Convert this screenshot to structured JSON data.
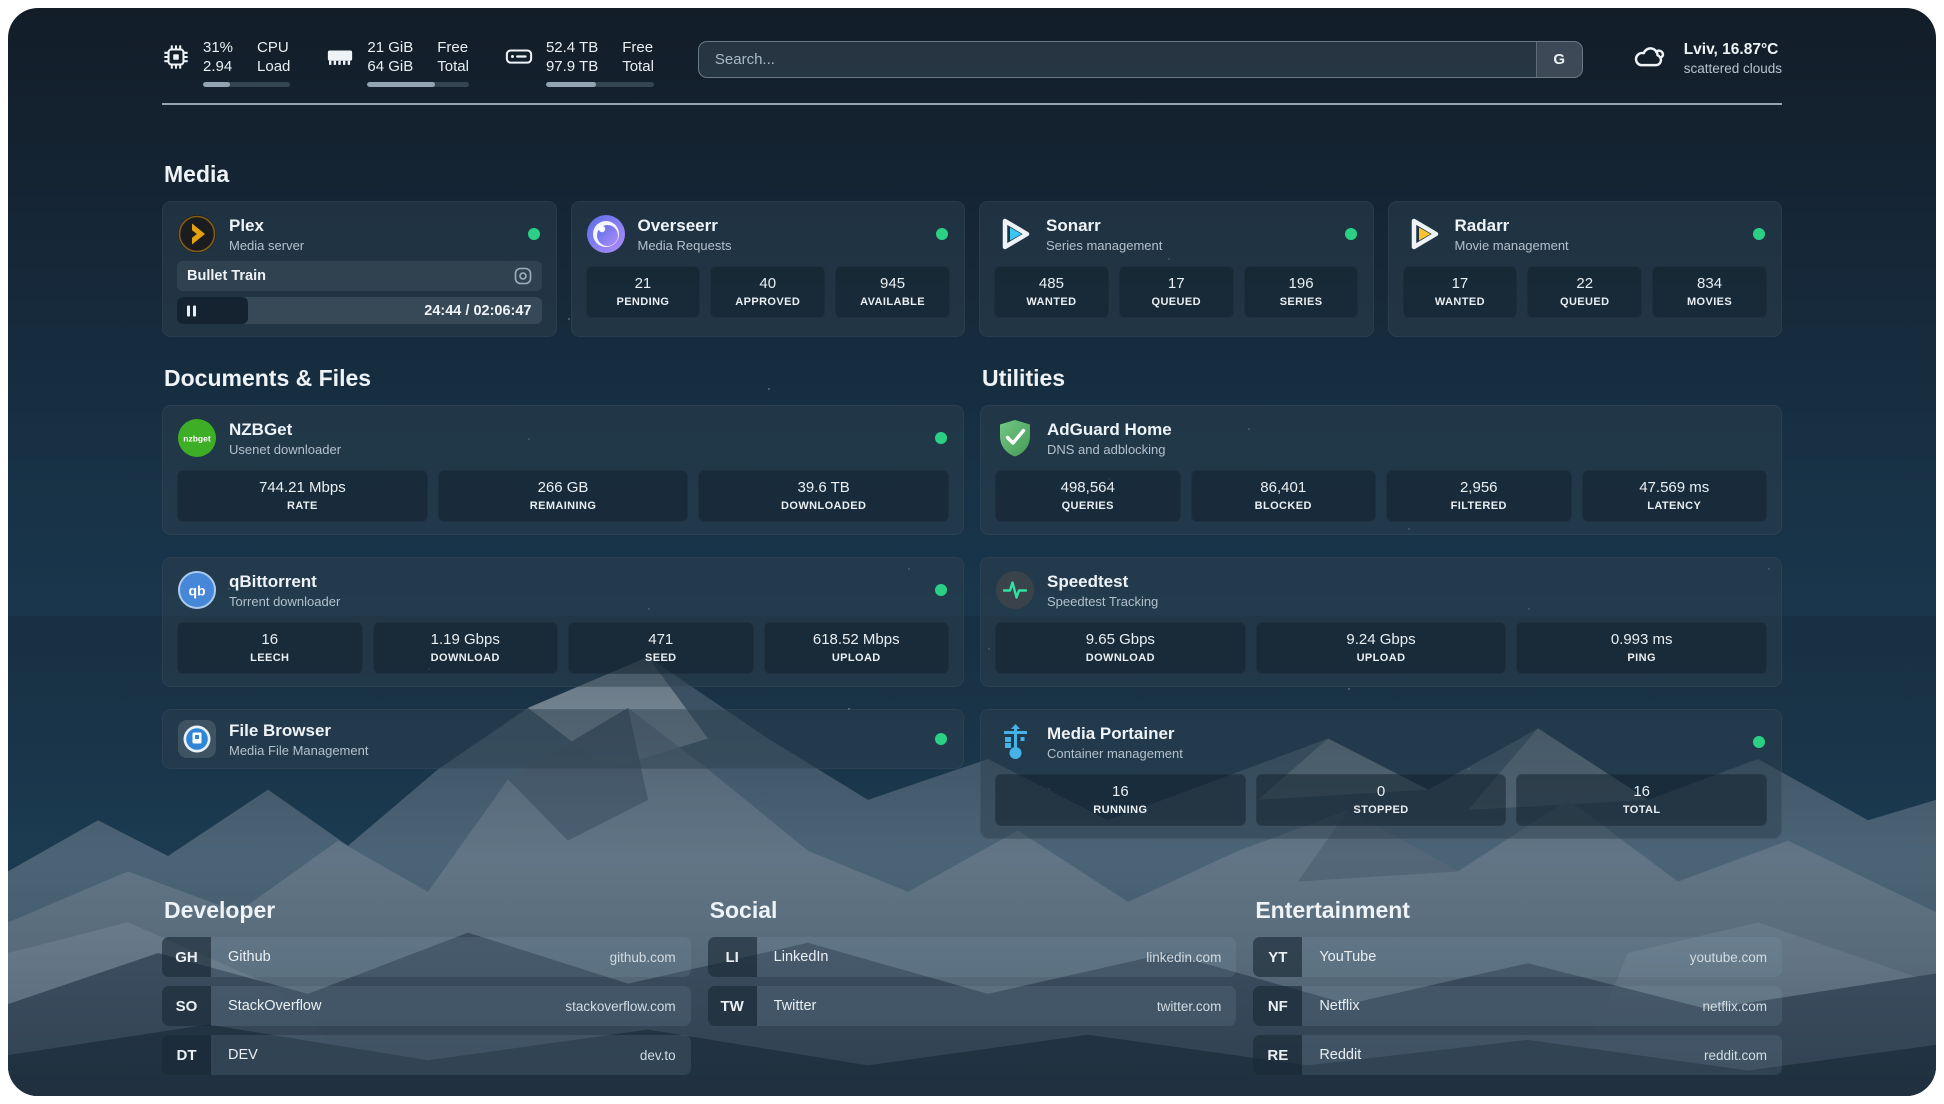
{
  "colors": {
    "status_online": "#2bd085",
    "panel_top": "#121d28",
    "panel_mid": "#1a3950",
    "plex_amber": "#e5a00d",
    "sonarr_blue": "#38c6f4",
    "radarr_yellow": "#fdc330",
    "nzbget_green": "#3fae27",
    "qbittorrent_blue": "#4687d8",
    "adguard_green": "#459a55",
    "speedtest_pulse": "#2fe3a0",
    "filebrowser_blue": "#2f86d8",
    "portainer_blue": "#46b2e8"
  },
  "icon_text": {
    "nzbget": "nzbget",
    "qbittorrent": "qb"
  },
  "topbar": {
    "stats": [
      {
        "icon": "cpu-icon",
        "value1": "31%",
        "value2": "2.94",
        "label1": "CPU",
        "label2": "Load",
        "progress_pct": 31
      },
      {
        "icon": "ram-icon",
        "value1": "21 GiB",
        "value2": "64 GiB",
        "label1": "Free",
        "label2": "Total",
        "progress_pct": 67
      },
      {
        "icon": "disk-icon",
        "value1": "52.4 TB",
        "value2": "97.9 TB",
        "label1": "Free",
        "label2": "Total",
        "progress_pct": 46
      }
    ],
    "search": {
      "placeholder": "Search...",
      "button_label": "G"
    },
    "weather": {
      "location": "Lviv, 16.87°C",
      "condition": "scattered clouds"
    }
  },
  "sections": {
    "media": {
      "heading": "Media",
      "plex": {
        "title": "Plex",
        "subtitle": "Media server",
        "now_playing": "Bullet Train",
        "time_display": "24:44 / 02:06:47",
        "progress_pct": 19.5
      },
      "overseerr": {
        "title": "Overseerr",
        "subtitle": "Media Requests",
        "stats": [
          {
            "value": "21",
            "label": "PENDING"
          },
          {
            "value": "40",
            "label": "APPROVED"
          },
          {
            "value": "945",
            "label": "AVAILABLE"
          }
        ]
      },
      "sonarr": {
        "title": "Sonarr",
        "subtitle": "Series management",
        "stats": [
          {
            "value": "485",
            "label": "WANTED"
          },
          {
            "value": "17",
            "label": "QUEUED"
          },
          {
            "value": "196",
            "label": "SERIES"
          }
        ]
      },
      "radarr": {
        "title": "Radarr",
        "subtitle": "Movie management",
        "stats": [
          {
            "value": "17",
            "label": "WANTED"
          },
          {
            "value": "22",
            "label": "QUEUED"
          },
          {
            "value": "834",
            "label": "MOVIES"
          }
        ]
      }
    },
    "documents": {
      "heading": "Documents & Files",
      "nzbget": {
        "title": "NZBGet",
        "subtitle": "Usenet downloader",
        "stats": [
          {
            "value": "744.21 Mbps",
            "label": "RATE"
          },
          {
            "value": "266 GB",
            "label": "REMAINING"
          },
          {
            "value": "39.6 TB",
            "label": "DOWNLOADED"
          }
        ]
      },
      "qbittorrent": {
        "title": "qBittorrent",
        "subtitle": "Torrent downloader",
        "stats": [
          {
            "value": "16",
            "label": "LEECH"
          },
          {
            "value": "1.19 Gbps",
            "label": "DOWNLOAD"
          },
          {
            "value": "471",
            "label": "SEED"
          },
          {
            "value": "618.52 Mbps",
            "label": "UPLOAD"
          }
        ]
      },
      "filebrowser": {
        "title": "File Browser",
        "subtitle": "Media File Management"
      }
    },
    "utilities": {
      "heading": "Utilities",
      "adguard": {
        "title": "AdGuard Home",
        "subtitle": "DNS and adblocking",
        "stats": [
          {
            "value": "498,564",
            "label": "QUERIES"
          },
          {
            "value": "86,401",
            "label": "BLOCKED"
          },
          {
            "value": "2,956",
            "label": "FILTERED"
          },
          {
            "value": "47.569 ms",
            "label": "LATENCY"
          }
        ]
      },
      "speedtest": {
        "title": "Speedtest",
        "subtitle": "Speedtest Tracking",
        "stats": [
          {
            "value": "9.65 Gbps",
            "label": "DOWNLOAD"
          },
          {
            "value": "9.24 Gbps",
            "label": "UPLOAD"
          },
          {
            "value": "0.993 ms",
            "label": "PING"
          }
        ]
      },
      "portainer": {
        "title": "Media Portainer",
        "subtitle": "Container management",
        "stats": [
          {
            "value": "16",
            "label": "RUNNING"
          },
          {
            "value": "0",
            "label": "STOPPED"
          },
          {
            "value": "16",
            "label": "TOTAL"
          }
        ]
      }
    },
    "bookmarks": {
      "developer": {
        "heading": "Developer",
        "items": [
          {
            "abbr": "GH",
            "name": "Github",
            "url": "github.com"
          },
          {
            "abbr": "SO",
            "name": "StackOverflow",
            "url": "stackoverflow.com"
          },
          {
            "abbr": "DT",
            "name": "DEV",
            "url": "dev.to"
          }
        ]
      },
      "social": {
        "heading": "Social",
        "items": [
          {
            "abbr": "LI",
            "name": "LinkedIn",
            "url": "linkedin.com"
          },
          {
            "abbr": "TW",
            "name": "Twitter",
            "url": "twitter.com"
          }
        ]
      },
      "entertainment": {
        "heading": "Entertainment",
        "items": [
          {
            "abbr": "YT",
            "name": "YouTube",
            "url": "youtube.com"
          },
          {
            "abbr": "NF",
            "name": "Netflix",
            "url": "netflix.com"
          },
          {
            "abbr": "RE",
            "name": "Reddit",
            "url": "reddit.com"
          }
        ]
      }
    }
  }
}
